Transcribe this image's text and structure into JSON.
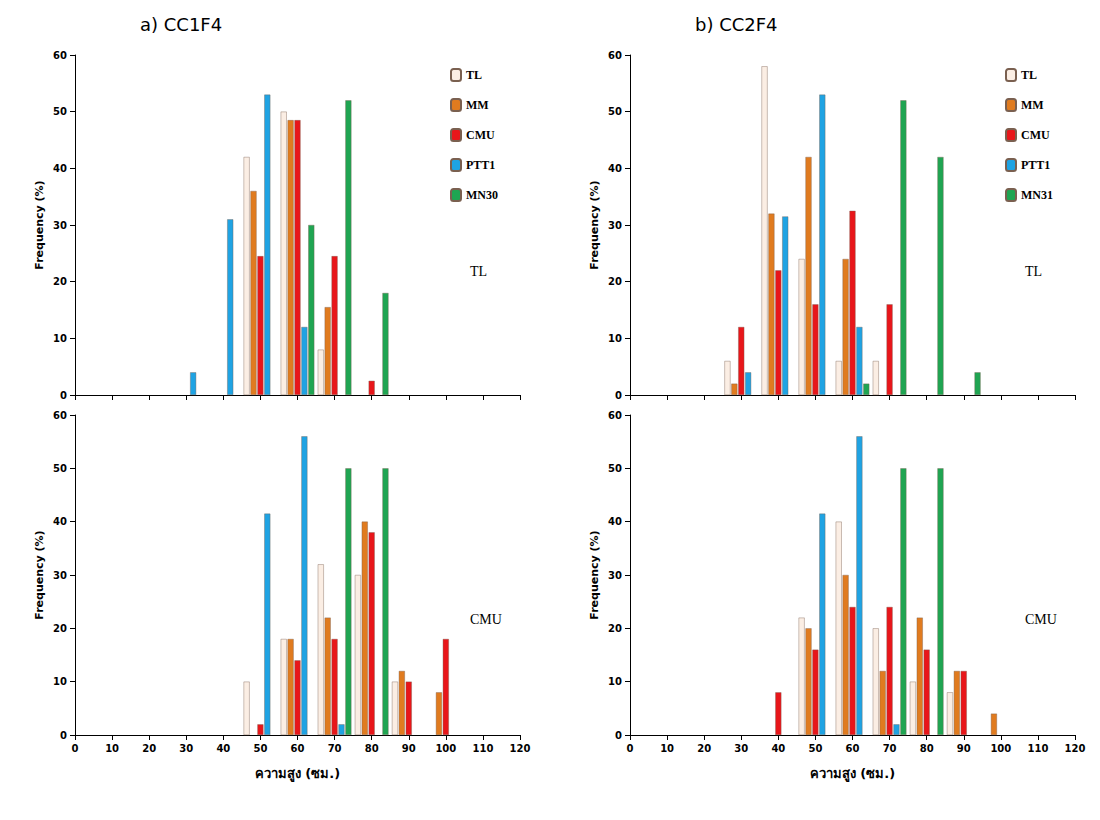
{
  "chart_data": [
    {
      "type": "bar",
      "title": "a) CC1F4",
      "annotation": "TL",
      "ylabel": "Frequency (%)",
      "x": [
        30,
        40,
        50,
        60,
        70,
        80
      ],
      "xlim": [
        0,
        120
      ],
      "xticks": [
        0,
        10,
        20,
        30,
        40,
        50,
        60,
        70,
        80,
        90,
        100,
        110,
        120
      ],
      "ylim": [
        0,
        60
      ],
      "yticks": [
        0,
        10,
        20,
        30,
        40,
        50,
        60
      ],
      "grid": false,
      "legend": "upper right",
      "tick_labels": "y",
      "series": [
        {
          "name": "TL",
          "color": "#fbeee4",
          "values": [
            null,
            null,
            42,
            50,
            8,
            null
          ]
        },
        {
          "name": "MM",
          "color": "#e07b1f",
          "values": [
            null,
            null,
            36,
            48.5,
            15.5,
            null
          ]
        },
        {
          "name": "CMU",
          "color": "#e8161a",
          "values": [
            null,
            null,
            24.5,
            48.5,
            24.5,
            2.5
          ]
        },
        {
          "name": "PTT1",
          "color": "#1fa3e3",
          "values": [
            4,
            31,
            53,
            12,
            null,
            null
          ]
        },
        {
          "name": "MN30",
          "color": "#1fa552",
          "values": [
            null,
            null,
            null,
            30,
            52,
            18
          ]
        }
      ]
    },
    {
      "type": "bar",
      "annotation": "CMU",
      "ylabel": "Frequency (%)",
      "xlabel": "ความสูง (ซม.)",
      "x": [
        50,
        60,
        70,
        80,
        90,
        100
      ],
      "xlim": [
        0,
        120
      ],
      "xticks": [
        0,
        10,
        20,
        30,
        40,
        50,
        60,
        70,
        80,
        90,
        100,
        110,
        120
      ],
      "ylim": [
        0,
        60
      ],
      "yticks": [
        0,
        10,
        20,
        30,
        40,
        50,
        60
      ],
      "grid": false,
      "series": [
        {
          "name": "TL",
          "color": "#fbeee4",
          "values": [
            10,
            18,
            32,
            30,
            10,
            null
          ]
        },
        {
          "name": "MM",
          "color": "#e07b1f",
          "values": [
            null,
            18,
            22,
            40,
            12,
            8
          ]
        },
        {
          "name": "CMU",
          "color": "#e8161a",
          "values": [
            2,
            14,
            18,
            38,
            10,
            18
          ]
        },
        {
          "name": "PTT1",
          "color": "#1fa3e3",
          "values": [
            41.5,
            56,
            2,
            null,
            null,
            null
          ]
        },
        {
          "name": "MN30",
          "color": "#1fa552",
          "values": [
            null,
            null,
            50,
            50,
            null,
            null
          ]
        }
      ]
    },
    {
      "type": "bar",
      "title": "b) CC2F4",
      "annotation": "TL",
      "ylabel": "Frequency (%)",
      "x": [
        30,
        40,
        50,
        60,
        70,
        80,
        90
      ],
      "xlim": [
        0,
        120
      ],
      "xticks": [
        0,
        10,
        20,
        30,
        40,
        50,
        60,
        70,
        80,
        90,
        100,
        110,
        120
      ],
      "ylim": [
        0,
        60
      ],
      "yticks": [
        0,
        10,
        20,
        30,
        40,
        50,
        60
      ],
      "grid": false,
      "legend": "upper right",
      "tick_labels": "y",
      "series": [
        {
          "name": "TL",
          "color": "#fbeee4",
          "values": [
            6,
            58,
            24,
            6,
            6,
            null,
            null
          ]
        },
        {
          "name": "MM",
          "color": "#e07b1f",
          "values": [
            2,
            32,
            42,
            24,
            null,
            null,
            null
          ]
        },
        {
          "name": "CMU",
          "color": "#e8161a",
          "values": [
            12,
            22,
            16,
            32.5,
            16,
            null,
            null
          ]
        },
        {
          "name": "PTT1",
          "color": "#1fa3e3",
          "values": [
            4,
            31.5,
            53,
            12,
            null,
            null,
            null
          ]
        },
        {
          "name": "MN31",
          "color": "#1fa552",
          "values": [
            null,
            null,
            null,
            2,
            52,
            42,
            4
          ]
        }
      ]
    },
    {
      "type": "bar",
      "annotation": "CMU",
      "ylabel": "Frequency (%)",
      "xlabel": "ความสูง (ซม.)",
      "x": [
        40,
        50,
        60,
        70,
        80,
        90,
        100
      ],
      "xlim": [
        0,
        120
      ],
      "xticks": [
        0,
        10,
        20,
        30,
        40,
        50,
        60,
        70,
        80,
        90,
        100,
        110,
        120
      ],
      "ylim": [
        0,
        60
      ],
      "yticks": [
        0,
        10,
        20,
        30,
        40,
        50,
        60
      ],
      "grid": false,
      "series": [
        {
          "name": "TL",
          "color": "#fbeee4",
          "values": [
            null,
            22,
            40,
            20,
            10,
            8,
            null
          ]
        },
        {
          "name": "MM",
          "color": "#e07b1f",
          "values": [
            null,
            20,
            30,
            12,
            22,
            12,
            4
          ]
        },
        {
          "name": "CMU",
          "color": "#e8161a",
          "values": [
            8,
            16,
            24,
            24,
            16,
            12,
            null
          ]
        },
        {
          "name": "PTT1",
          "color": "#1fa3e3",
          "values": [
            null,
            41.5,
            56,
            2,
            null,
            null,
            null
          ]
        },
        {
          "name": "MN31",
          "color": "#1fa552",
          "values": [
            null,
            null,
            null,
            50,
            50,
            null,
            null
          ]
        }
      ]
    }
  ]
}
